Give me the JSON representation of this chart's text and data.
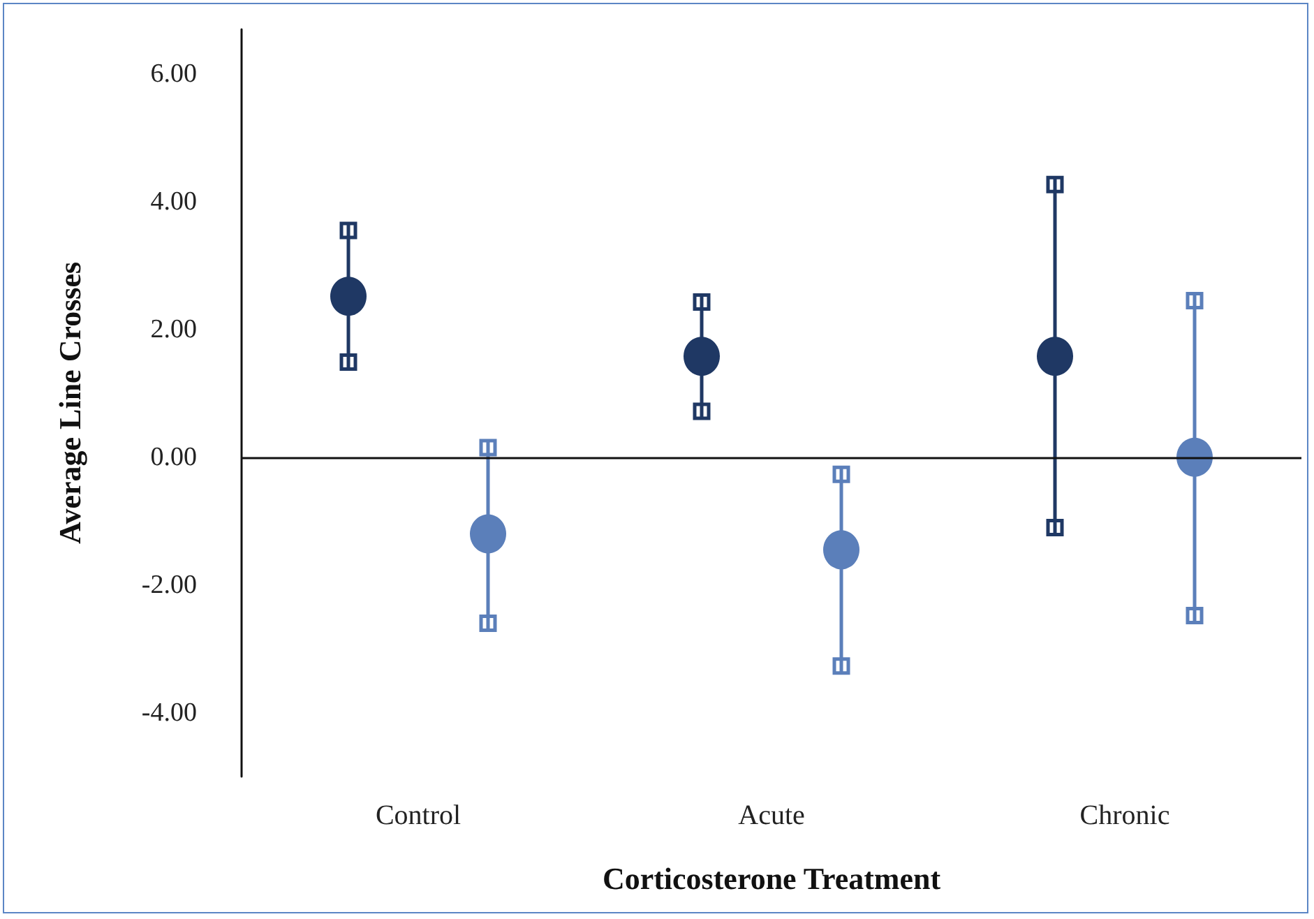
{
  "chart_data": {
    "type": "scatter",
    "xlabel": "Corticosterone Treatment",
    "ylabel": "Average Line Crosses",
    "categories": [
      "Control",
      "Acute",
      "Chronic"
    ],
    "series": [
      {
        "color": "#1f3864",
        "values": [
          2.52,
          1.58,
          1.58
        ],
        "errors": [
          [
            1.38,
            3.66
          ],
          [
            0.61,
            2.54
          ],
          [
            -1.21,
            4.38
          ]
        ]
      },
      {
        "color": "#5b7fba",
        "values": [
          -1.2,
          -1.45,
          0.0
        ],
        "errors": [
          [
            -2.71,
            0.26
          ],
          [
            -3.38,
            -0.16
          ],
          [
            -2.59,
            2.56
          ]
        ]
      }
    ],
    "ylim": [
      -5,
      6.7
    ],
    "yticks": [
      {
        "value": -4,
        "label": "-4.00"
      },
      {
        "value": -2,
        "label": "-2.00"
      },
      {
        "value": 0,
        "label": "0.00"
      },
      {
        "value": 2,
        "label": "2.00"
      },
      {
        "value": 4,
        "label": "4.00"
      },
      {
        "value": 6,
        "label": "6.00"
      }
    ],
    "ref_lines": [
      {
        "axis": "y",
        "value": 0,
        "color": "#111111"
      }
    ],
    "marker": "circle",
    "grid": false,
    "legend": false
  }
}
